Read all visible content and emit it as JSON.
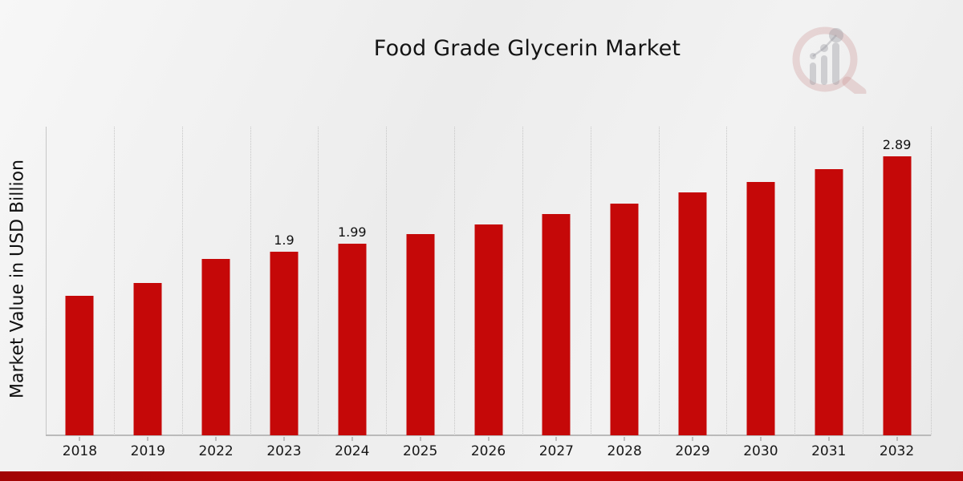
{
  "chart_data": {
    "type": "bar",
    "title": "Food Grade Glycerin Market",
    "ylabel": "Market Value in USD Billion",
    "xlabel": "",
    "categories": [
      "2018",
      "2019",
      "2022",
      "2023",
      "2024",
      "2025",
      "2026",
      "2027",
      "2028",
      "2029",
      "2030",
      "2031",
      "2032"
    ],
    "values": [
      1.45,
      1.58,
      1.83,
      1.9,
      1.99,
      2.09,
      2.19,
      2.29,
      2.4,
      2.52,
      2.63,
      2.76,
      2.89
    ],
    "bar_labels": [
      "",
      "",
      "",
      "1.9",
      "1.99",
      "",
      "",
      "",
      "",
      "",
      "",
      "",
      "2.89"
    ],
    "ylim": [
      0,
      3.2
    ],
    "unit": "USD Billion",
    "legend": "none",
    "grid": "vertical dotted gridlines between categories",
    "bar_color": "#c50808",
    "accent_strip_color": "#b40606",
    "axis_line_color": "#bababa",
    "gridline_color": "#c6c6c6"
  },
  "branding": {
    "logo_icon": "magnifying-glass-with-bar-chart-watermark"
  }
}
